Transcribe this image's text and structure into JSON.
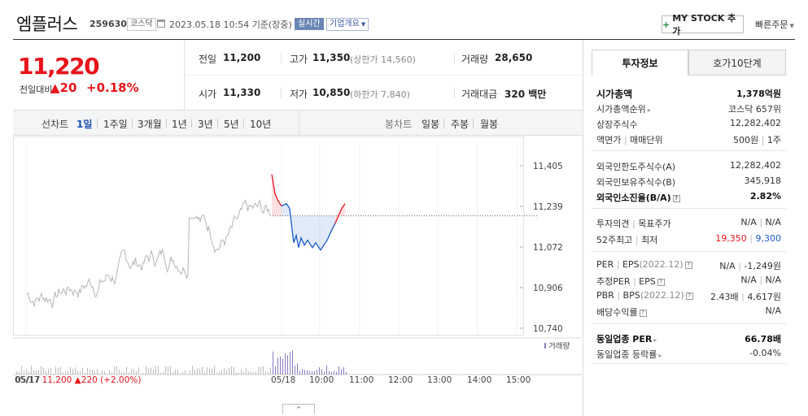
{
  "header": {
    "stock_name": "엠플러스",
    "stock_code": "259630",
    "market": "코스닥",
    "datetime": "2023.05.18 10:54",
    "basis": "기준(장중)",
    "realtime_badge": "실시간",
    "company_info_label": "기업개요",
    "mystock_label": "MY STOCK 추가",
    "quick_order_label": "빠른주문"
  },
  "price": {
    "current": "11,220",
    "change_label": "전일대비",
    "change": "20",
    "rate": "+0.18%"
  },
  "quote": {
    "prev_close_label": "전일",
    "prev_close": "11,200",
    "high_label": "고가",
    "high": "11,350",
    "upper_limit": "(상한가 14,560)",
    "volume_label": "거래량",
    "volume": "28,650",
    "open_label": "시가",
    "open": "11,330",
    "low_label": "저가",
    "low": "10,850",
    "lower_limit": "(하한가 7,840)",
    "amount_label": "거래대금",
    "amount": "320 백만"
  },
  "periods": {
    "line_chart_label": "선차트",
    "items": [
      "1일",
      "1주일",
      "3개월",
      "1년",
      "3년",
      "5년",
      "10년"
    ],
    "active": "1일",
    "candle_label": "봉차트",
    "candle_items": [
      "일봉",
      "주봉",
      "월봉"
    ]
  },
  "tabs": {
    "invest": "투자정보",
    "hoga": "호가10단계"
  },
  "invest_info": {
    "market_cap_label": "시가총액",
    "market_cap": "1,378억원",
    "market_cap_rank_label": "시가총액순위",
    "market_cap_rank": "코스닥 657위",
    "shares_label": "상장주식수",
    "shares": "12,282,402",
    "par_label": "액면가",
    "unit_label": "매매단위",
    "par": "500원",
    "unit": "1주",
    "foreign_limit_label": "외국인한도주식수(A)",
    "foreign_limit": "12,282,402",
    "foreign_hold_label": "외국인보유주식수(B)",
    "foreign_hold": "345,918",
    "foreign_rate_label": "외국인소진율(B/A)",
    "foreign_rate": "2.82%",
    "opinion_label": "투자의견",
    "target_label": "목표주가",
    "opinion": "N/A",
    "target": "N/A",
    "w52_high_label": "52주최고",
    "w52_low_label": "최저",
    "w52_high": "19,350",
    "w52_low": "9,300",
    "per_label": "PER",
    "eps_label": "EPS",
    "eps_year": "(2022.12)",
    "per": "N/A",
    "eps": "-1,249원",
    "est_per_label": "추정PER",
    "est_eps_label": "EPS",
    "est_per": "N/A",
    "est_eps": "N/A",
    "pbr_label": "PBR",
    "bps_label": "BPS",
    "bps_year": "(2022.12)",
    "pbr": "2.43배",
    "bps": "4,617원",
    "div_label": "배당수익률",
    "div": "N/A",
    "sector_per_label": "동일업종 PER",
    "sector_per": "66.78배",
    "sector_rate_label": "동일업종 등락률",
    "sector_rate": "-0.04%"
  },
  "chart_data": {
    "type": "line",
    "y_ticks": [
      "11,405",
      "11,239",
      "11,072",
      "10,906",
      "10,740"
    ],
    "x_ticks": [
      "05/17",
      "05/18",
      "10:00",
      "11:00",
      "12:00",
      "13:00",
      "14:00",
      "15:00"
    ],
    "volume_label": "거래량",
    "prev_close": 11200,
    "prev_day_summary": {
      "date": "05/17",
      "close": "11,200",
      "change": "220",
      "rate": "(+2.00%)"
    },
    "colors": {
      "up": "#e8131b",
      "down": "#1b5cc8",
      "prev_day": "#b5b5b5",
      "volume": "#8c79c2"
    }
  }
}
